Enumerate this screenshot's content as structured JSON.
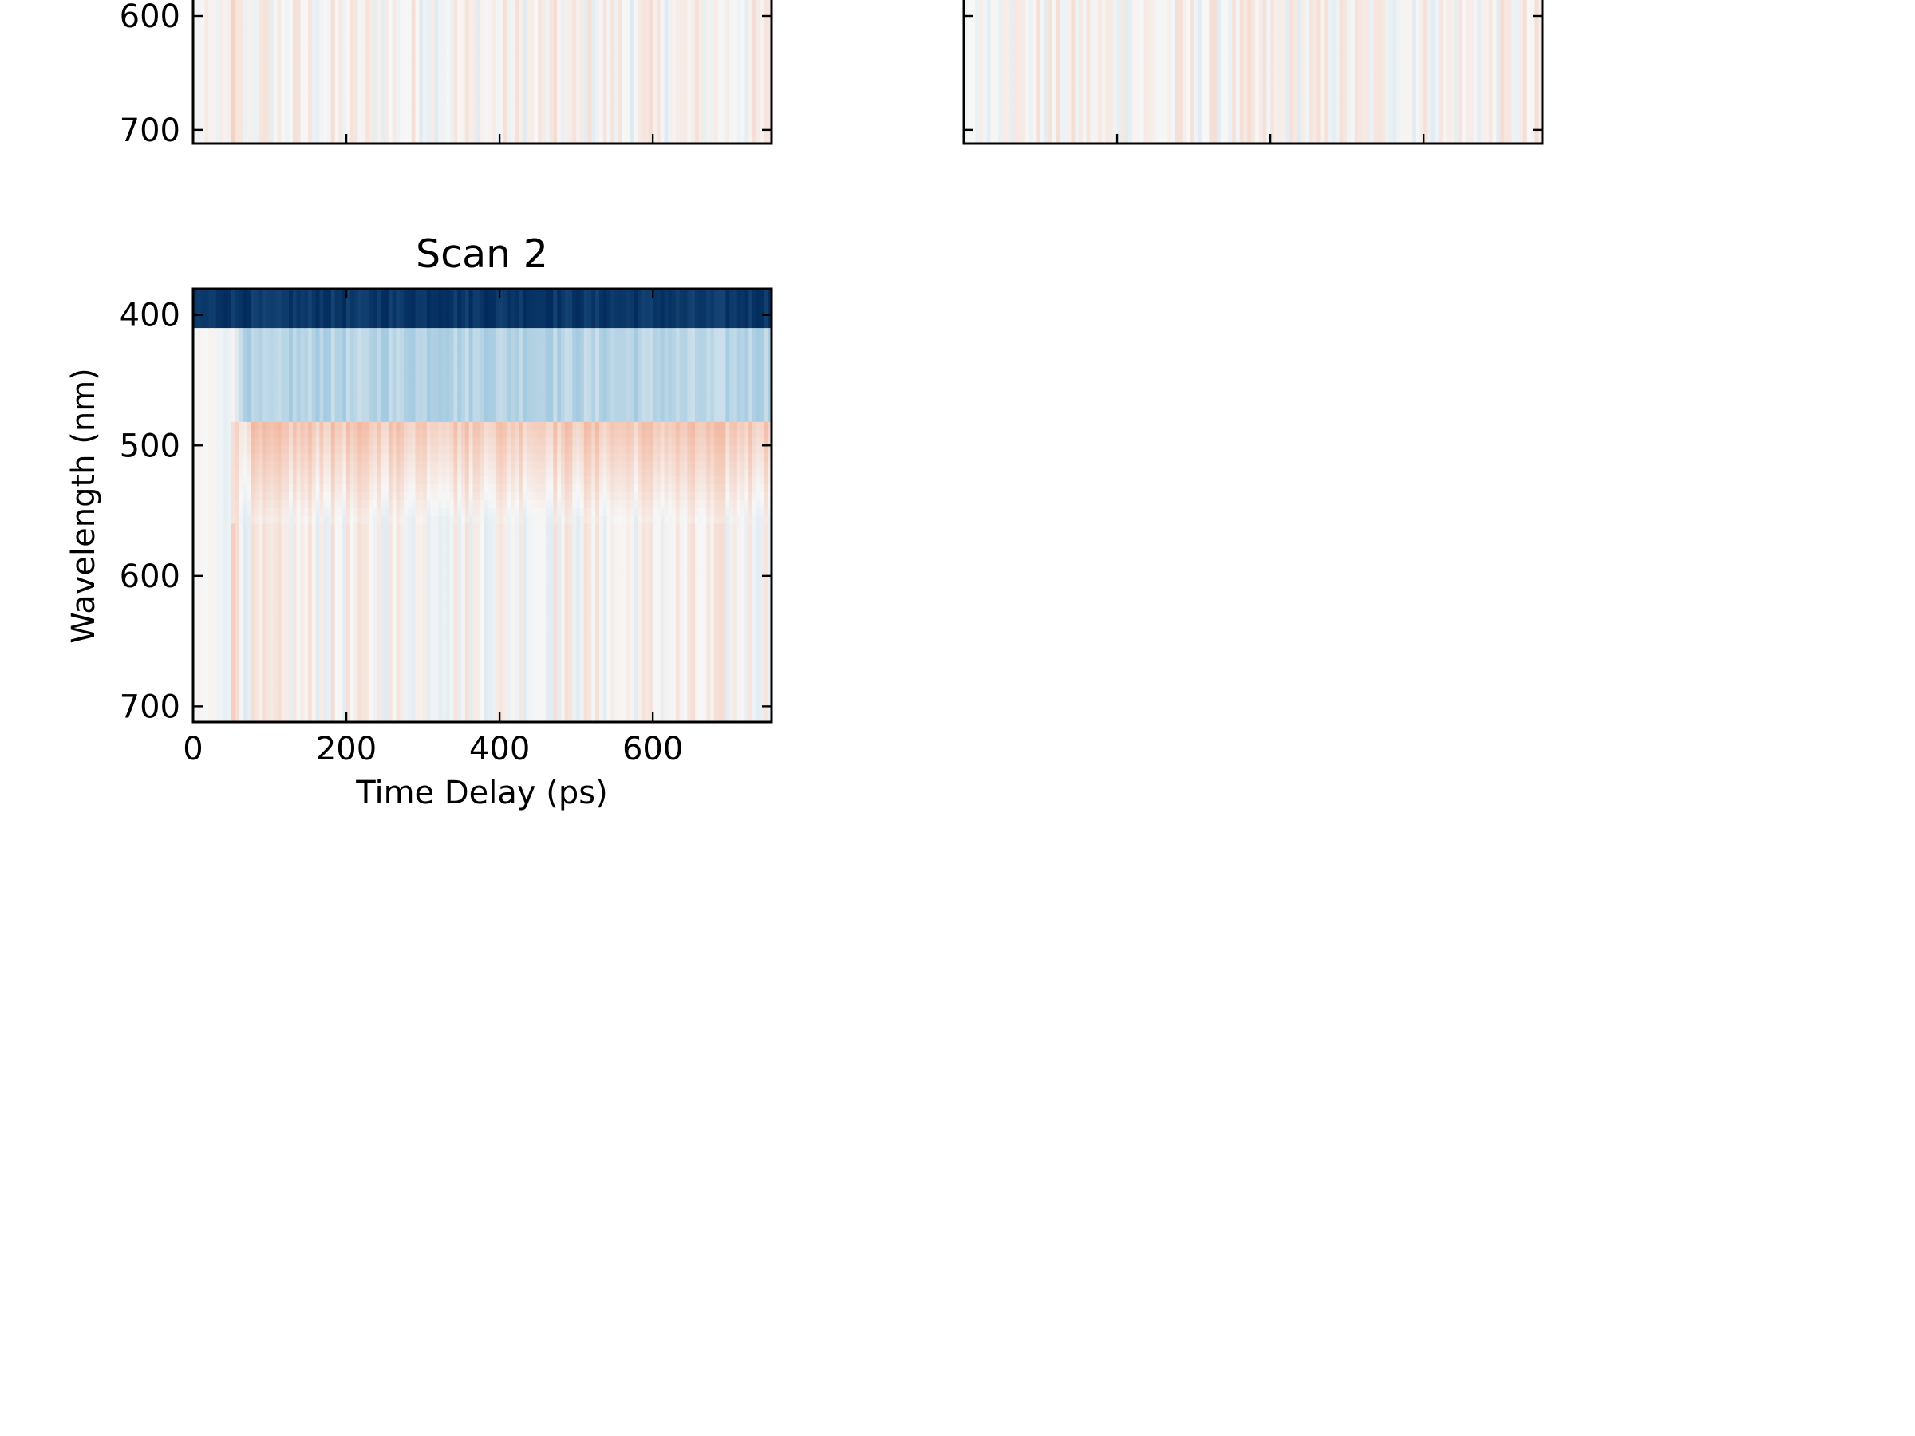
{
  "chart_data": [
    {
      "type": "heatmap",
      "title": "",
      "xlabel": "",
      "ylabel": "",
      "x_ticks": [
        200,
        400,
        600
      ],
      "y_ticks": [
        600,
        700
      ],
      "y_tick_labels": [
        "600",
        "700"
      ],
      "xlim": [
        0,
        755
      ],
      "ylim_shown": [
        565,
        712
      ],
      "y_inverted": true,
      "colormap": "RdBu_r",
      "features": {
        "onset_ps": 50,
        "pump_band_nm": [
          380,
          412
        ],
        "bleach_band_nm": [
          412,
          482
        ],
        "induced_absorption_nm": [
          482,
          560
        ]
      }
    },
    {
      "type": "heatmap",
      "title": "",
      "xlabel": "",
      "ylabel": "",
      "x_ticks": [
        200,
        400,
        600
      ],
      "y_ticks": [
        600,
        700
      ],
      "y_tick_labels": [
        "",
        ""
      ],
      "xlim": [
        0,
        755
      ],
      "ylim_shown": [
        565,
        712
      ],
      "y_inverted": true,
      "colormap": "RdBu_r",
      "features": {
        "onset_ps": 50,
        "pump_band_nm": [
          380,
          412
        ],
        "bleach_band_nm": [
          412,
          482
        ],
        "induced_absorption_nm": [
          482,
          560
        ]
      }
    },
    {
      "type": "heatmap",
      "title": "Scan 2",
      "xlabel": "Time Delay (ps)",
      "ylabel": "Wavelength (nm)",
      "x_ticks": [
        0,
        200,
        400,
        600
      ],
      "x_tick_labels": [
        "0",
        "200",
        "400",
        "600"
      ],
      "y_ticks": [
        400,
        500,
        600,
        700
      ],
      "y_tick_labels": [
        "400",
        "500",
        "600",
        "700"
      ],
      "xlim": [
        0,
        755
      ],
      "ylim": [
        380,
        712
      ],
      "y_inverted": true,
      "colormap": "RdBu_r",
      "features": {
        "onset_ps": 50,
        "pump_band_nm": [
          380,
          412
        ],
        "bleach_band_nm": [
          412,
          482
        ],
        "induced_absorption_nm": [
          482,
          560
        ]
      }
    }
  ]
}
